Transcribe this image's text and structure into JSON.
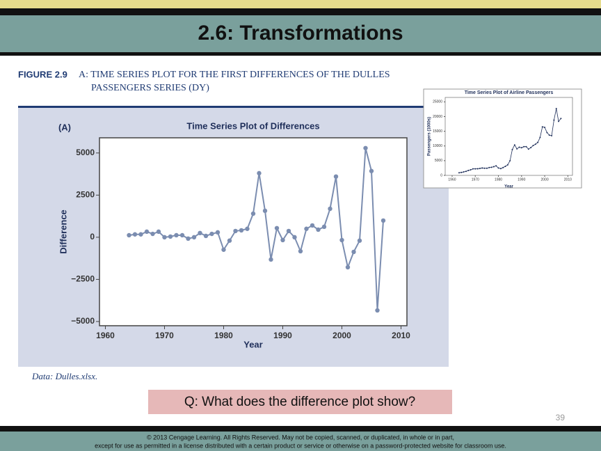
{
  "slide": {
    "title": "2.6: Transformations",
    "figure_label": "FIGURE 2.9",
    "caption": [
      "A: TIME SERIES PLOT FOR THE FIRST DIFFERENCES OF THE DULLES",
      "PASSENGERS SERIES (DY)"
    ],
    "data_source": "Data: Dulles.xlsx.",
    "question": "Q: What does the difference plot show?",
    "page_number": "39",
    "footer": [
      "© 2013 Cengage Learning. All Rights Reserved. May not be copied, scanned, or duplicated, in whole or in part,",
      "except for use as permitted in a license distributed with a certain product or service or otherwise on a password-protected website for classroom use."
    ]
  },
  "chart_data": [
    {
      "type": "line",
      "panel_label": "(A)",
      "title": "Time Series Plot of Differences",
      "x_label": "Year",
      "y_label": "Difference",
      "x": [
        1964,
        1965,
        1966,
        1967,
        1968,
        1969,
        1970,
        1971,
        1972,
        1973,
        1974,
        1975,
        1976,
        1977,
        1978,
        1979,
        1980,
        1981,
        1982,
        1983,
        1984,
        1985,
        1986,
        1987,
        1988,
        1989,
        1990,
        1991,
        1992,
        1993,
        1994,
        1995,
        1996,
        1997,
        1998,
        1999,
        2000,
        2001,
        2002,
        2003,
        2004,
        2005,
        2006,
        2007
      ],
      "values": [
        120,
        170,
        170,
        330,
        200,
        330,
        0,
        40,
        120,
        120,
        -80,
        0,
        250,
        80,
        200,
        290,
        -740,
        -200,
        370,
        410,
        500,
        1400,
        3800,
        1570,
        -1320,
        540,
        -170,
        370,
        0,
        -830,
        500,
        700,
        450,
        620,
        1690,
        3600,
        -170,
        -1780,
        -870,
        -200,
        5290,
        3930,
        -4340,
        990
      ],
      "color": "#7b8db0",
      "markers": true,
      "xlim": [
        1959,
        2011
      ],
      "xticks": [
        1960,
        1970,
        1980,
        1990,
        2000,
        2010
      ],
      "ylim": [
        -5250,
        5900
      ],
      "yticks": [
        {
          "value": -5000,
          "label": "−5000"
        },
        {
          "value": -2500,
          "label": "−2500"
        },
        0,
        2500,
        5000
      ]
    },
    {
      "type": "line",
      "title": "Time Series Plot of Airline Passengers",
      "x_label": "Year",
      "y_label": "Passengers (1000s)",
      "x": [
        1963,
        1964,
        1965,
        1966,
        1967,
        1968,
        1969,
        1970,
        1971,
        1972,
        1973,
        1974,
        1975,
        1976,
        1977,
        1978,
        1979,
        1980,
        1981,
        1982,
        1983,
        1984,
        1985,
        1986,
        1987,
        1988,
        1989,
        1990,
        1991,
        1992,
        1993,
        1994,
        1995,
        1996,
        1997,
        1998,
        1999,
        2000,
        2001,
        2002,
        2003,
        2004,
        2005,
        2006,
        2007
      ],
      "values": [
        900,
        1020,
        1190,
        1360,
        1690,
        1890,
        2220,
        2220,
        2260,
        2380,
        2500,
        2420,
        2420,
        2670,
        2750,
        2950,
        3240,
        2500,
        2300,
        2670,
        3080,
        3580,
        4980,
        8780,
        10350,
        9030,
        9570,
        9400,
        9770,
        9770,
        8940,
        9440,
        10140,
        10590,
        11210,
        12900,
        16500,
        16330,
        14550,
        13680,
        13480,
        18770,
        22700,
        18360,
        19350
      ],
      "color": "#1f2f5a",
      "markers": true,
      "xlim": [
        1957,
        2012
      ],
      "xticks": [
        1960,
        1970,
        1980,
        1990,
        2000,
        2010
      ],
      "ylim": [
        0,
        26500
      ],
      "yticks": [
        0,
        5000,
        10000,
        15000,
        20000,
        25000
      ]
    }
  ]
}
